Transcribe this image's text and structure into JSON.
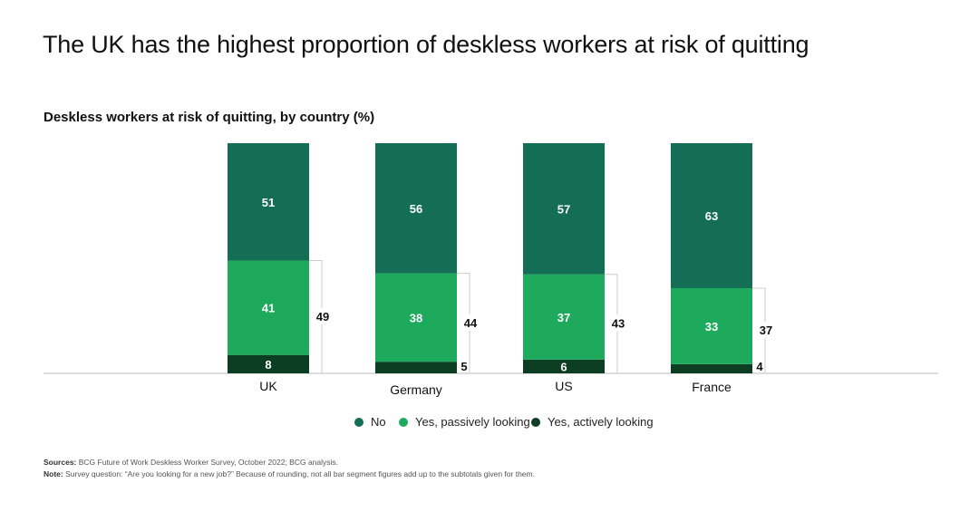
{
  "page": {
    "title": "The UK has the highest proportion of deskless workers at risk of quitting",
    "chart_title": "Deskless workers at risk of quitting, by country (%)",
    "sources_label": "Sources:",
    "sources_text": "BCG Future of Work Deskless Worker Survey, October 2022; BCG analysis.",
    "note_label": "Note:",
    "note_text": "Survey question: “Are you looking for a new job?” Because of rounding, not all bar segment figures add up to the subtotals given for them."
  },
  "colors": {
    "no": "#146e56",
    "passive": "#1eaa5d",
    "active": "#0d3d22",
    "subtotal_bracket": "#cccccc",
    "baseline": "#bbbbbb"
  },
  "chart_data": {
    "type": "bar",
    "stacked": true,
    "categories": [
      "UK",
      "Germany",
      "US",
      "France"
    ],
    "series": [
      {
        "name": "Yes, actively looking",
        "values": [
          8,
          5,
          6,
          4
        ]
      },
      {
        "name": "Yes, passively looking",
        "values": [
          41,
          38,
          37,
          33
        ]
      },
      {
        "name": "No",
        "values": [
          51,
          56,
          57,
          63
        ]
      }
    ],
    "subtotals": [
      49,
      44,
      43,
      37
    ],
    "legend": [
      "No",
      "Yes, passively looking",
      "Yes, actively looking"
    ],
    "legend_position": "bottom",
    "ylim": [
      0,
      100
    ],
    "grid": false
  }
}
